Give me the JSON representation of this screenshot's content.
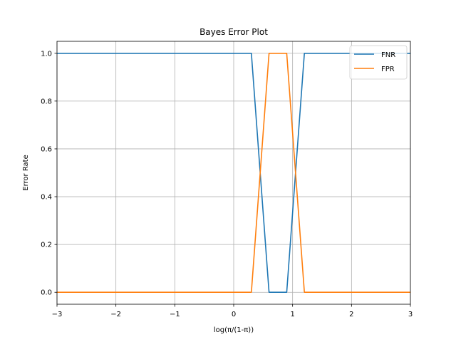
{
  "chart_data": {
    "type": "line",
    "title": "Bayes Error Plot",
    "xlabel": "log(π/(1-π))",
    "ylabel": "Error Rate",
    "xlim": [
      -3,
      3
    ],
    "ylim": [
      -0.05,
      1.05
    ],
    "xticks": [
      -3,
      -2,
      -1,
      0,
      1,
      2,
      3
    ],
    "yticks": [
      0.0,
      0.2,
      0.4,
      0.6,
      0.8,
      1.0
    ],
    "xtick_labels": [
      "−3",
      "−2",
      "−1",
      "0",
      "1",
      "2",
      "3"
    ],
    "ytick_labels": [
      "0.0",
      "0.2",
      "0.4",
      "0.6",
      "0.8",
      "1.0"
    ],
    "grid": true,
    "legend_position": "top-right",
    "series": [
      {
        "name": "FNR",
        "color": "#1f77b4",
        "x": [
          -3.0,
          0.3,
          0.6,
          0.9,
          1.2,
          3.0
        ],
        "y": [
          1.0,
          1.0,
          0.0,
          0.0,
          1.0,
          1.0
        ]
      },
      {
        "name": "FPR",
        "color": "#ff7f0e",
        "x": [
          -3.0,
          0.3,
          0.6,
          0.9,
          1.2,
          3.0
        ],
        "y": [
          0.0,
          0.0,
          1.0,
          1.0,
          0.0,
          0.0
        ]
      }
    ]
  }
}
